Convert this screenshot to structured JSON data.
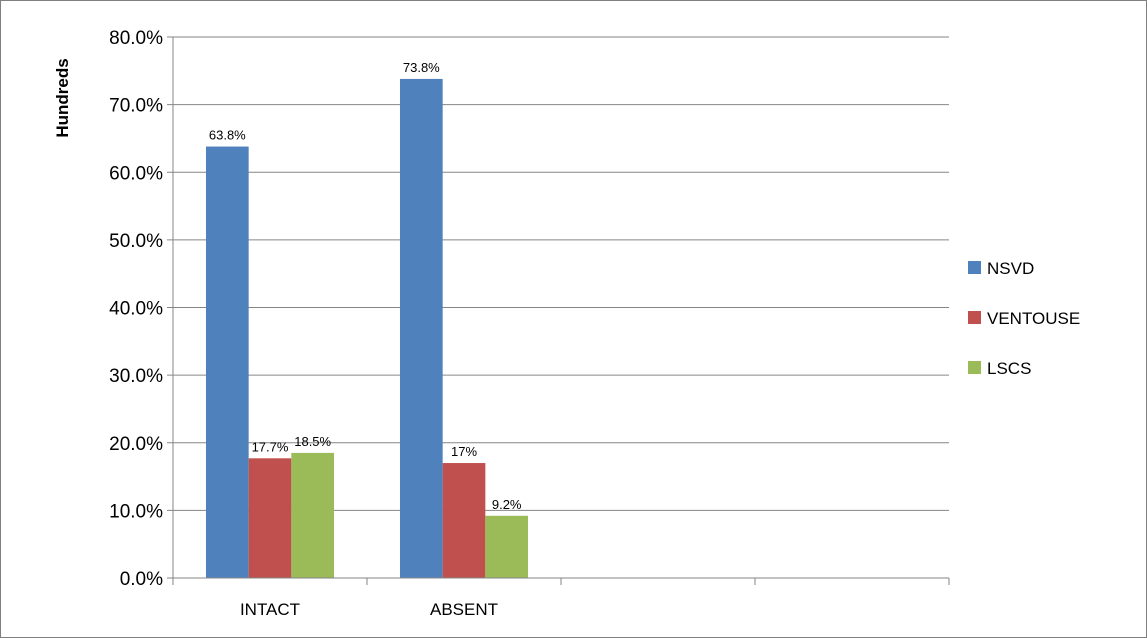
{
  "chart_data": {
    "type": "bar",
    "title": "",
    "ylabel": "Hundreds",
    "xlabel": "",
    "ylim": [
      0,
      80
    ],
    "yticks": [
      "0.0%",
      "10.0%",
      "20.0%",
      "30.0%",
      "40.0%",
      "50.0%",
      "60.0%",
      "70.0%",
      "80.0%"
    ],
    "categories": [
      "INTACT",
      "ABSENT",
      "",
      ""
    ],
    "series": [
      {
        "name": "NSVD",
        "color": "#4f81bd",
        "values": [
          63.8,
          73.8,
          null,
          null
        ],
        "labels": [
          "63.8%",
          "73.8%",
          "",
          ""
        ]
      },
      {
        "name": "VENTOUSE",
        "color": "#c0504d",
        "values": [
          17.7,
          17,
          null,
          null
        ],
        "labels": [
          "17.7%",
          "17%",
          "",
          ""
        ]
      },
      {
        "name": "LSCS",
        "color": "#9bbb59",
        "values": [
          18.5,
          9.2,
          null,
          null
        ],
        "labels": [
          "18.5%",
          "9.2%",
          "",
          ""
        ]
      }
    ],
    "grid": true,
    "legend_position": "right"
  }
}
